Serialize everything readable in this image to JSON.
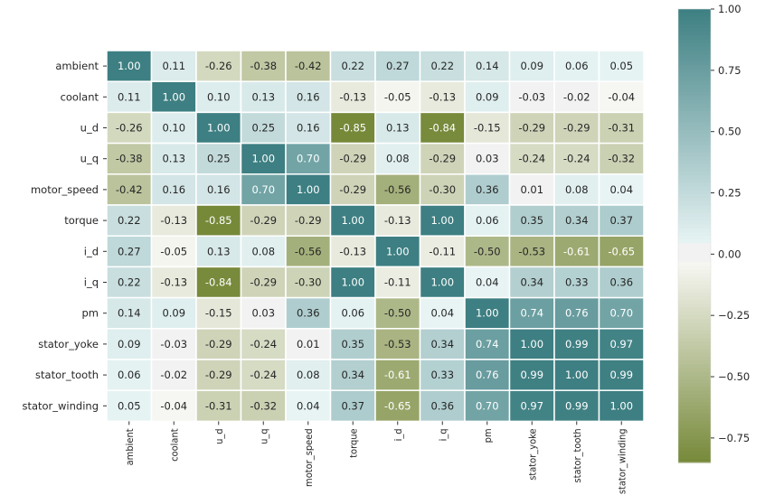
{
  "chart_data": {
    "type": "heatmap",
    "title": "",
    "xlabel": "",
    "ylabel": "",
    "row_labels": [
      "ambient",
      "coolant",
      "u_d",
      "u_q",
      "motor_speed",
      "torque",
      "i_d",
      "i_q",
      "pm",
      "stator_yoke",
      "stator_tooth",
      "stator_winding"
    ],
    "col_labels": [
      "ambient",
      "coolant",
      "u_d",
      "u_q",
      "motor_speed",
      "torque",
      "i_d",
      "i_q",
      "pm",
      "stator_yoke",
      "stator_tooth",
      "stator_winding"
    ],
    "values": [
      [
        1.0,
        0.11,
        -0.26,
        -0.38,
        -0.42,
        0.22,
        0.27,
        0.22,
        0.14,
        0.09,
        0.06,
        0.05
      ],
      [
        0.11,
        1.0,
        0.1,
        0.13,
        0.16,
        -0.13,
        -0.05,
        -0.13,
        0.09,
        -0.03,
        -0.02,
        -0.04
      ],
      [
        -0.26,
        0.1,
        1.0,
        0.25,
        0.16,
        -0.85,
        0.13,
        -0.84,
        -0.15,
        -0.29,
        -0.29,
        -0.31
      ],
      [
        -0.38,
        0.13,
        0.25,
        1.0,
        0.7,
        -0.29,
        0.08,
        -0.29,
        0.03,
        -0.24,
        -0.24,
        -0.32
      ],
      [
        -0.42,
        0.16,
        0.16,
        0.7,
        1.0,
        -0.29,
        -0.56,
        -0.3,
        0.36,
        0.01,
        0.08,
        0.04
      ],
      [
        0.22,
        -0.13,
        -0.85,
        -0.29,
        -0.29,
        1.0,
        -0.13,
        1.0,
        0.06,
        0.35,
        0.34,
        0.37
      ],
      [
        0.27,
        -0.05,
        0.13,
        0.08,
        -0.56,
        -0.13,
        1.0,
        -0.11,
        -0.5,
        -0.53,
        -0.61,
        -0.65
      ],
      [
        0.22,
        -0.13,
        -0.84,
        -0.29,
        -0.3,
        1.0,
        -0.11,
        1.0,
        0.04,
        0.34,
        0.33,
        0.36
      ],
      [
        0.14,
        0.09,
        -0.15,
        0.03,
        0.36,
        0.06,
        -0.5,
        0.04,
        1.0,
        0.74,
        0.76,
        0.7
      ],
      [
        0.09,
        -0.03,
        -0.29,
        -0.24,
        0.01,
        0.35,
        -0.53,
        0.34,
        0.74,
        1.0,
        0.99,
        0.97
      ],
      [
        0.06,
        -0.02,
        -0.29,
        -0.24,
        0.08,
        0.34,
        -0.61,
        0.33,
        0.76,
        0.99,
        1.0,
        0.99
      ],
      [
        0.05,
        -0.04,
        -0.31,
        -0.32,
        0.04,
        0.37,
        -0.65,
        0.36,
        0.7,
        0.97,
        0.99,
        1.0
      ]
    ],
    "value_format": "2 decimals",
    "vmin": -0.85,
    "vmax": 1.0,
    "colorbar": {
      "ticks": [
        1.0,
        0.75,
        0.5,
        0.25,
        0.0,
        -0.25,
        -0.5,
        -0.75
      ],
      "tick_labels": [
        "1.00",
        "0.75",
        "0.50",
        "0.25",
        "0.00",
        "−0.25",
        "−0.50",
        "−0.75"
      ],
      "placement": "right"
    },
    "colormap": {
      "negative": "#768939",
      "mid_light": "#f7f7f3",
      "center": "#f2f2f2",
      "positive": "#3d7f82"
    },
    "grid": false,
    "cell_separator_color": "#ffffff"
  }
}
